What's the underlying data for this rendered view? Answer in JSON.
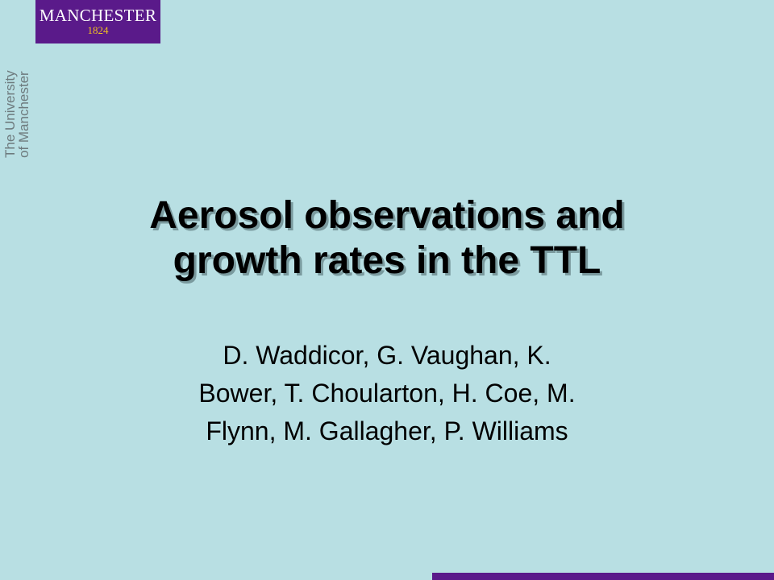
{
  "colors": {
    "background": "#b8dfe3",
    "brand_purple": "#5a1a8a",
    "brand_gold": "#f0c020",
    "logo_text": "#ffffff",
    "title_text": "#000000",
    "title_shadow": "#7a9a9e",
    "authors_text": "#000000",
    "vertical_text": "#6e7b7e"
  },
  "logo": {
    "word": "MANCHESTER",
    "year": "1824"
  },
  "university_label": {
    "line1": "The University",
    "line2": "of Manchester"
  },
  "slide": {
    "title_line1": "Aerosol observations and",
    "title_line2": "growth rates in the TTL",
    "authors_line1": "D. Waddicor, G. Vaughan, K.",
    "authors_line2": "Bower, T. Choularton, H. Coe, M.",
    "authors_line3": "Flynn, M. Gallagher, P. Williams"
  }
}
